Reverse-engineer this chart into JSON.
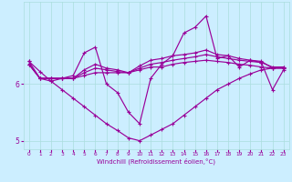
{
  "xlabel": "Windchill (Refroidissement éolien,°C)",
  "x": [
    0,
    1,
    2,
    3,
    4,
    5,
    6,
    7,
    8,
    9,
    10,
    11,
    12,
    13,
    14,
    15,
    16,
    17,
    18,
    19,
    20,
    21,
    22,
    23
  ],
  "line_smooth1": [
    6.35,
    6.1,
    6.1,
    6.1,
    6.1,
    6.15,
    6.2,
    6.2,
    6.2,
    6.2,
    6.25,
    6.3,
    6.3,
    6.35,
    6.38,
    6.4,
    6.42,
    6.4,
    6.38,
    6.35,
    6.33,
    6.3,
    6.28,
    6.28
  ],
  "line_smooth2": [
    6.35,
    6.1,
    6.1,
    6.1,
    6.1,
    6.2,
    6.28,
    6.25,
    6.22,
    6.2,
    6.28,
    6.35,
    6.38,
    6.42,
    6.45,
    6.48,
    6.52,
    6.48,
    6.45,
    6.42,
    6.4,
    6.38,
    6.3,
    6.3
  ],
  "line_smooth3": [
    6.35,
    6.1,
    6.1,
    6.1,
    6.1,
    6.25,
    6.35,
    6.28,
    6.25,
    6.2,
    6.32,
    6.42,
    6.45,
    6.5,
    6.52,
    6.55,
    6.6,
    6.52,
    6.5,
    6.45,
    6.42,
    6.4,
    6.28,
    6.28
  ],
  "line_zigzag": [
    6.4,
    6.1,
    6.05,
    6.1,
    6.15,
    6.55,
    6.65,
    6.0,
    5.85,
    5.5,
    5.3,
    6.1,
    6.35,
    6.5,
    6.9,
    7.0,
    7.2,
    6.45,
    6.5,
    6.3,
    6.42,
    6.38,
    5.9,
    6.25
  ],
  "line_diagonal": [
    6.4,
    6.22,
    6.05,
    5.9,
    5.75,
    5.6,
    5.45,
    5.3,
    5.18,
    5.05,
    5.0,
    5.1,
    5.2,
    5.3,
    5.45,
    5.6,
    5.75,
    5.9,
    6.0,
    6.1,
    6.18,
    6.25,
    6.28,
    6.3
  ],
  "bg_color": "#cceeff",
  "grid_color": "#aadddd",
  "line_color": "#990099",
  "ylim": [
    4.85,
    7.45
  ],
  "yticks": [
    5,
    6
  ],
  "xticks": [
    0,
    1,
    2,
    3,
    4,
    5,
    6,
    7,
    8,
    9,
    10,
    11,
    12,
    13,
    14,
    15,
    16,
    17,
    18,
    19,
    20,
    21,
    22,
    23
  ]
}
